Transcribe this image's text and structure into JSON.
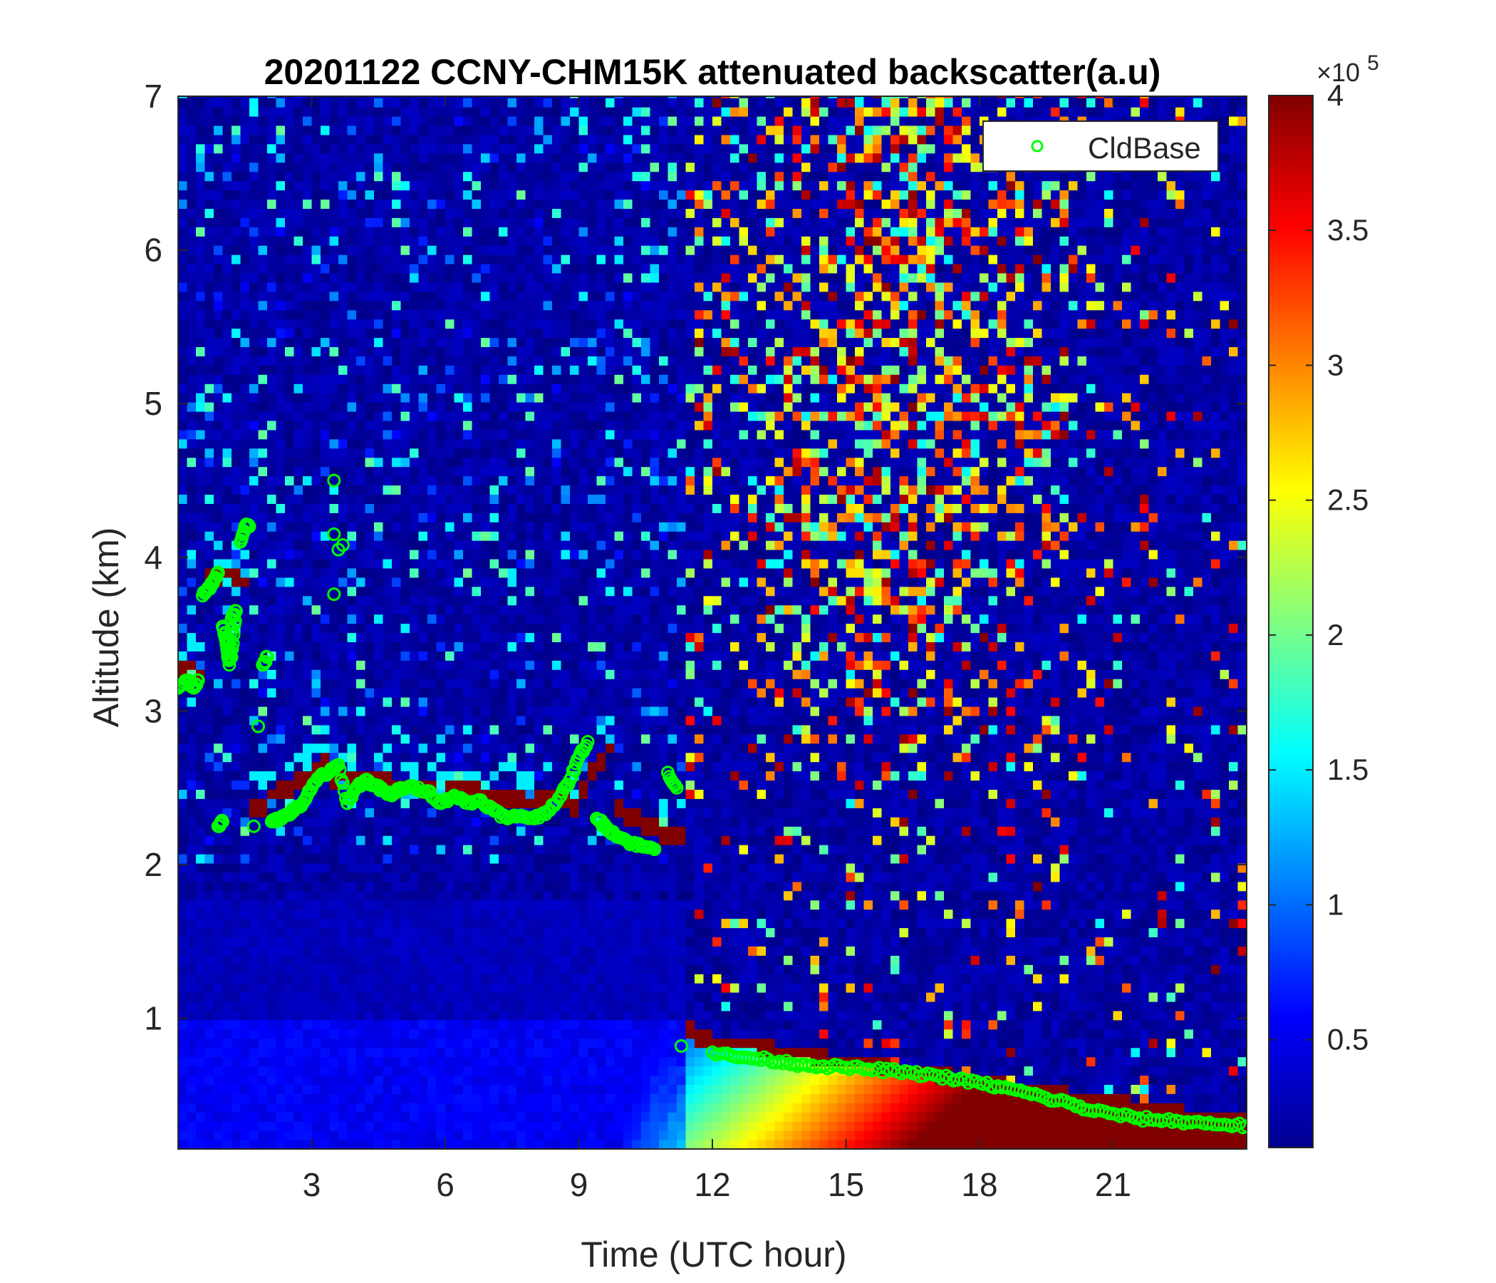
{
  "chart_data": {
    "type": "heatmap",
    "title": "20201122 CCNY-CHM15K attenuated backscatter(a.u)",
    "xlabel": "Time (UTC hour)",
    "ylabel": "Altitude (km)",
    "xlim": [
      0,
      24
    ],
    "ylim": [
      0.15,
      7
    ],
    "xticks": [
      3,
      6,
      9,
      12,
      15,
      18,
      21
    ],
    "xtick_labels": [
      "3",
      "6",
      "9",
      "12",
      "15",
      "18",
      "21"
    ],
    "yticks": [
      1,
      2,
      3,
      4,
      5,
      6,
      7
    ],
    "ytick_labels": [
      "1",
      "2",
      "3",
      "4",
      "5",
      "6",
      "7"
    ],
    "colorbar": {
      "colormap": "jet",
      "clim": [
        0.1,
        4
      ],
      "ticks": [
        0.5,
        1,
        1.5,
        2,
        2.5,
        3,
        3.5,
        4
      ],
      "tick_labels": [
        "0.5",
        "1",
        "1.5",
        "2",
        "2.5",
        "3",
        "3.5",
        "4"
      ],
      "multiplier_prefix": "×10",
      "multiplier_exponent": "5"
    },
    "legend": {
      "placement": "top-right",
      "entries": [
        "CldBase"
      ]
    },
    "series": [
      {
        "name": "CldBase",
        "marker": "circle-open",
        "color": "#00ff00",
        "x": [
          0.0,
          0.2,
          0.35,
          0.45,
          0.55,
          0.7,
          0.8,
          0.9,
          1.0,
          1.1,
          1.2,
          1.3,
          0.9,
          1.0,
          1.05,
          1.1,
          1.15,
          1.2,
          1.3,
          1.4,
          1.5,
          1.6,
          1.7,
          1.8,
          1.9,
          2.0,
          2.1,
          2.2,
          2.3,
          2.4,
          2.6,
          2.8,
          3.0,
          3.2,
          3.4,
          3.6,
          3.8,
          4.0,
          4.2,
          4.4,
          4.6,
          4.8,
          5.0,
          5.3,
          5.6,
          5.9,
          6.2,
          6.5,
          6.8,
          7.1,
          7.4,
          7.7,
          8.0,
          8.3,
          8.6,
          8.8,
          9.0,
          9.2,
          9.4,
          9.6,
          9.8,
          10.1,
          10.4,
          10.7,
          11.0,
          11.2,
          11.3,
          12.0,
          12.5,
          13.0,
          13.5,
          14.0,
          14.5,
          15.0,
          15.5,
          16.0,
          16.5,
          17.0,
          17.5,
          18.0,
          18.5,
          19.0,
          19.5,
          20.0,
          20.5,
          21.0,
          21.5,
          22.0,
          22.5,
          23.0,
          23.5,
          24.0
        ],
        "y": [
          3.15,
          3.2,
          3.15,
          3.2,
          3.75,
          3.8,
          3.85,
          3.9,
          3.55,
          3.45,
          3.35,
          3.65,
          2.25,
          2.28,
          3.5,
          3.4,
          3.3,
          3.6,
          3.65,
          4.1,
          4.2,
          4.2,
          2.25,
          2.9,
          3.3,
          3.35,
          2.28,
          2.3,
          2.3,
          2.32,
          2.35,
          2.4,
          2.5,
          2.58,
          2.6,
          2.65,
          2.4,
          2.5,
          2.55,
          2.52,
          2.48,
          2.45,
          2.5,
          2.5,
          2.48,
          2.4,
          2.45,
          2.4,
          2.42,
          2.35,
          2.3,
          2.32,
          2.3,
          2.35,
          2.45,
          2.55,
          2.7,
          2.8,
          2.3,
          2.25,
          2.2,
          2.15,
          2.12,
          2.1,
          2.6,
          2.5,
          0.82,
          0.78,
          0.75,
          0.74,
          0.72,
          0.7,
          0.69,
          0.68,
          0.67,
          0.66,
          0.64,
          0.63,
          0.6,
          0.58,
          0.55,
          0.52,
          0.48,
          0.45,
          0.4,
          0.38,
          0.35,
          0.34,
          0.33,
          0.32,
          0.31,
          0.3
        ],
        "isolated_points": {
          "x": [
            3.5,
            3.5,
            3.5,
            3.6,
            3.7
          ],
          "y": [
            4.5,
            3.76,
            4.15,
            4.05,
            4.08
          ]
        }
      }
    ],
    "background_features": [
      "low-level aerosol layer below ~1 km (0–11 UTC), broadening and increasing toward the surface after 12 UTC",
      "cloud layer near 2.3–2.6 km from ~1.7 to ~11.3 UTC",
      "strong near-surface backscatter 15–24 UTC below ~0.5 km",
      "noisy high values above ~2 km after 12 UTC"
    ]
  }
}
